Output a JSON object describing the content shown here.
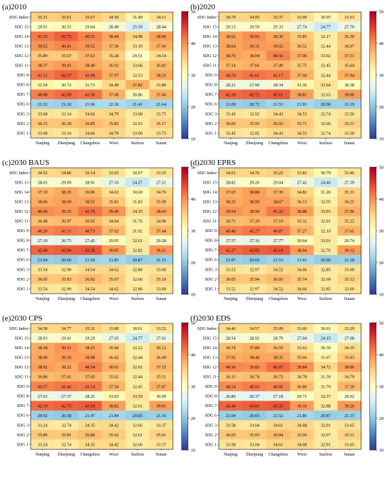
{
  "chart_data": [
    {
      "type": "heatmap",
      "title": "(a)2010",
      "columns": [
        "Nanjing",
        "Zhenjiang",
        "Changzhou",
        "Wuxi",
        "Suzhou",
        "Sunan"
      ],
      "rows": [
        "SDG Index",
        "SDG 15",
        "SDG 14",
        "SDG 13",
        "SDG 12",
        "SDG 11",
        "SDG 9",
        "SDG 8",
        "SDG 7",
        "SDG 6",
        "SDG 3",
        "SDG 2",
        "SDG 1"
      ],
      "values": [
        [
          35.31,
          35.61,
          35.67,
          34.5,
          31.4,
          34.11
        ],
        [
          29.91,
          30.51,
          29.84,
          28.49,
          25.5,
          28.44
        ],
        [
          41.35,
          42.75,
          40.51,
          38.44,
          34.98,
          38.96
        ],
        [
          39.52,
          40.41,
          39.52,
          37.36,
          33.19,
          37.6
        ],
        [
          35.89,
          35.67,
          37.63,
          35.28,
          29.51,
          34.14
        ],
        [
          38.37,
          39.01,
          38.4,
          36.92,
          33.66,
          36.82
        ],
        [
          41.12,
          42.37,
          41.08,
          37.97,
          32.53,
          38.21
        ],
        [
          31.54,
          30.72,
          31.73,
          34.49,
          37.82,
          33.89
        ],
        [
          40.98,
          42.09,
          41.5,
          37.68,
          30.86,
          37.66
        ],
        [
          21.52,
          21.1,
          21.96,
          22.36,
          21.41,
          21.64
        ],
        [
          33.68,
          33.14,
          34.66,
          34.79,
          33.0,
          33.75
        ],
        [
          36.15,
          36.18,
          36.85,
          35.82,
          32.63,
          35.17
        ],
        [
          33.68,
          33.14,
          34.66,
          34.79,
          33.0,
          33.75
        ]
      ],
      "colorbar": {
        "min": 10,
        "max": 50,
        "ticks": [
          10,
          20,
          30,
          40,
          50
        ]
      }
    },
    {
      "type": "heatmap",
      "title": "(b)2020",
      "columns": [
        "Nanjing",
        "Zhenjiang",
        "Changzhou",
        "Wuxi",
        "Suzhou",
        "Sunan"
      ],
      "rows": [
        "SDG Index",
        "SDG 15",
        "SDG 14",
        "SDG 13",
        "SDG 12",
        "SDG 11",
        "SDG 9",
        "SDG 8",
        "SDG 7",
        "SDG 6",
        "SDG 3",
        "SDG 2",
        "SDG 1"
      ],
      "values": [
        [
          34.79,
          34.95,
          35.37,
          33.99,
          30.95,
          33.63
        ],
        [
          29.13,
          29.59,
          29.33,
          27.74,
          24.77,
          27.7
        ],
        [
          38.62,
          39.92,
          38.3,
          35.85,
          32.17,
          36.3
        ],
        [
          38.64,
          39.31,
          39.02,
          36.52,
          32.44,
          36.07
        ],
        [
          38.76,
          38.04,
          40.56,
          37.96,
          33.02,
          37.11
        ],
        [
          37.14,
          37.66,
          37.49,
          35.75,
          32.45,
          35.64
        ],
        [
          40.74,
          41.61,
          41.17,
          37.6,
          32.44,
          37.94
        ],
        [
          28.21,
          27.9,
          28.34,
          31.3,
          33.64,
          30.38
        ],
        [
          42.18,
          42.72,
          43.11,
          38.81,
          32.63,
          39.0
        ],
        [
          21.09,
          20.72,
          21.53,
          21.93,
          20.9,
          21.19
        ],
        [
          33.45,
          32.92,
          34.43,
          34.53,
          32.74,
          33.5
        ],
        [
          36.06,
          35.95,
          36.92,
          35.71,
          32.66,
          35.11
        ],
        [
          33.45,
          32.92,
          34.43,
          34.53,
          32.74,
          33.5
        ]
      ],
      "colorbar": {
        "min": 10,
        "max": 50,
        "ticks": [
          10,
          20,
          30,
          40,
          50
        ]
      }
    },
    {
      "type": "heatmap",
      "title": "(c)2030 BAUS",
      "columns": [
        "Nanjing",
        "Zhenjiang",
        "Changzhou",
        "Wuxi",
        "Suzhou",
        "Sunan"
      ],
      "rows": [
        "SDG Index",
        "SDG 15",
        "SDG 14",
        "SDG 13",
        "SDG 12",
        "SDG 11",
        "SDG 9",
        "SDG 8",
        "SDG 7",
        "SDG 6",
        "SDG 3",
        "SDG 2",
        "SDG 1"
      ],
      "values": [
        [
          34.52,
          34.86,
          35.14,
          33.65,
          30.67,
          33.35
        ],
        [
          28.65,
          29.09,
          28.91,
          27.16,
          24.27,
          27.21
        ],
        [
          37.1,
          38.35,
          36.96,
          34.02,
          30.69,
          34.76
        ],
        [
          38.06,
          38.69,
          38.51,
          35.81,
          31.83,
          35.99
        ],
        [
          40.06,
          39.35,
          41.7,
          39.49,
          34.35,
          38.43
        ],
        [
          36.48,
          36.97,
          36.92,
          34.94,
          31.76,
          34.96
        ],
        [
          40.26,
          41.11,
          40.73,
          37.02,
          31.92,
          37.44
        ],
        [
          27.1,
          26.75,
          27.42,
          29.95,
          32.61,
          29.28
        ],
        [
          42.4,
          42.94,
          43.28,
          39.05,
          32.82,
          39.21
        ],
        [
          21.04,
          20.66,
          21.5,
          21.85,
          20.87,
          21.15
        ],
        [
          33.54,
          32.99,
          34.54,
          34.62,
          32.86,
          33.6
        ],
        [
          36.05,
          35.93,
          36.92,
          35.67,
          32.66,
          35.1
        ],
        [
          33.54,
          32.99,
          34.54,
          34.62,
          32.86,
          33.6
        ]
      ],
      "colorbar": {
        "min": 10,
        "max": 50,
        "ticks": [
          10,
          20,
          30,
          40,
          50
        ]
      }
    },
    {
      "type": "heatmap",
      "title": "(d)2030 EPRS",
      "columns": [
        "Nanjing",
        "Zhenjiang",
        "Changzhou",
        "Wuxi",
        "Suzhou",
        "Sunan"
      ],
      "rows": [
        "SDG Index",
        "SDG 15",
        "SDG 14",
        "SDG 13",
        "SDG 12",
        "SDG 11",
        "SDG 9",
        "SDG 8",
        "SDG 7",
        "SDG 6",
        "SDG 3",
        "SDG 2",
        "SDG 1"
      ],
      "values": [
        [
          34.61,
          34.76,
          35.22,
          33.83,
          30.79,
          33.46
        ],
        [
          28.82,
          29.26,
          29.04,
          27.42,
          24.46,
          27.39
        ],
        [
          37.65,
          38.88,
          37.39,
          34.82,
          31.2,
          35.31
        ],
        [
          38.25,
          38.9,
          38.67,
          36.13,
          32.05,
          36.21
        ],
        [
          39.54,
          38.9,
          41.32,
          38.88,
          33.93,
          37.96
        ],
        [
          36.71,
          37.2,
          37.1,
          35.32,
          32.01,
          35.22
        ],
        [
          40.4,
          41.27,
          40.87,
          37.27,
          32.1,
          37.61
        ],
        [
          27.57,
          27.16,
          27.77,
          30.64,
          33.01,
          29.74
        ],
        [
          42.27,
          42.85,
          43.19,
          38.94,
          32.76,
          39.12
        ],
        [
          21.07,
          20.69,
          21.53,
          21.93,
          20.9,
          21.18
        ],
        [
          33.52,
          32.97,
          34.52,
          34.66,
          32.85,
          33.6
        ],
        [
          36.05,
          35.94,
          36.93,
          35.74,
          32.69,
          35.12
        ],
        [
          33.52,
          32.97,
          34.52,
          34.66,
          32.85,
          33.6
        ]
      ],
      "colorbar": {
        "min": 10,
        "max": 50,
        "ticks": [
          10,
          20,
          30,
          40,
          50
        ]
      }
    },
    {
      "type": "heatmap",
      "title": "(e)2030 CPS",
      "columns": [
        "Nanjing",
        "Zhenjiang",
        "Changzhou",
        "Wuxi",
        "Suzhou",
        "Sunan"
      ],
      "rows": [
        "SDG Index",
        "SDG 15",
        "SDG 14",
        "SDG 13",
        "SDG 12",
        "SDG 11",
        "SDG 9",
        "SDG 8",
        "SDG 7",
        "SDG 6",
        "SDG 3",
        "SDG 2",
        "SDG 1"
      ],
      "values": [
        [
          34.58,
          34.77,
          35.31,
          33.89,
          30.91,
          33.52
        ],
        [
          28.93,
          29.41,
          29.29,
          27.65,
          24.77,
          27.61
        ],
        [
          38.18,
          39.51,
          38.25,
          35.68,
          32.22,
          36.12
        ],
        [
          38.4,
          39.1,
          38.98,
          36.42,
          32.44,
          36.49
        ],
        [
          38.92,
          38.22,
          40.54,
          38.01,
          32.92,
          37.15
        ],
        [
          36.86,
          37.41,
          37.43,
          35.62,
          32.44,
          35.51
        ],
        [
          40.57,
          41.46,
          41.14,
          37.54,
          32.45,
          37.87
        ],
        [
          27.63,
          27.37,
          28.21,
          31.03,
          33.59,
          30.09
        ],
        [
          42.19,
          42.75,
          43.1,
          38.82,
          32.61,
          39.01
        ],
        [
          20.92,
          20.58,
          21.47,
          21.84,
          20.85,
          21.1
        ],
        [
          33.24,
          32.74,
          34.35,
          34.42,
          32.66,
          33.37
        ],
        [
          35.89,
          35.81,
          36.86,
          35.62,
          32.61,
          35.01
        ],
        [
          33.24,
          32.74,
          34.35,
          34.42,
          32.66,
          33.37
        ]
      ],
      "colorbar": {
        "min": 10,
        "max": 50,
        "ticks": [
          10,
          20,
          30,
          40,
          50
        ]
      }
    },
    {
      "type": "heatmap",
      "title": "(f)2030 EDS",
      "columns": [
        "Nanjing",
        "Zhenjiang",
        "Changzhou",
        "Wuxi",
        "Suzhou",
        "Sunan"
      ],
      "rows": [
        "SDG Index",
        "SDG 15",
        "SDG 14",
        "SDG 13",
        "SDG 12",
        "SDG 11",
        "SDG 9",
        "SDG 8",
        "SDG 7",
        "SDG 6",
        "SDG 3",
        "SDG 2",
        "SDG 1"
      ],
      "values": [
        [
          34.46,
          34.57,
          35.09,
          33.6,
          30.61,
          33.29
        ],
        [
          28.54,
          28.92,
          28.79,
          27.04,
          24.15,
          27.08
        ],
        [
          36.74,
          37.8,
          36.55,
          33.63,
          30.3,
          34.35
        ],
        [
          37.92,
          38.48,
          38.35,
          35.66,
          31.67,
          35.83
        ],
        [
          40.36,
          39.83,
          42.07,
          39.84,
          34.72,
          38.8
        ],
        [
          36.33,
          36.74,
          36.75,
          34.78,
          31.59,
          34.79
        ],
        [
          40.14,
          40.93,
          40.6,
          36.89,
          31.79,
          37.3
        ],
        [
          26.86,
          26.37,
          27.18,
          29.71,
          32.37,
          29.02
        ],
        [
          42.44,
          43.01,
          43.33,
          39.1,
          32.88,
          39.26
        ],
        [
          21.04,
          20.65,
          21.52,
          21.86,
          20.87,
          21.15
        ],
        [
          33.58,
          33.04,
          34.61,
          34.68,
          32.91,
          33.65
        ],
        [
          36.05,
          35.93,
          36.94,
          35.69,
          32.67,
          35.11
        ],
        [
          33.58,
          33.04,
          34.61,
          34.68,
          32.91,
          33.65
        ]
      ],
      "colorbar": {
        "min": 10,
        "max": 50,
        "ticks": [
          10,
          20,
          30,
          40,
          50
        ]
      }
    }
  ]
}
